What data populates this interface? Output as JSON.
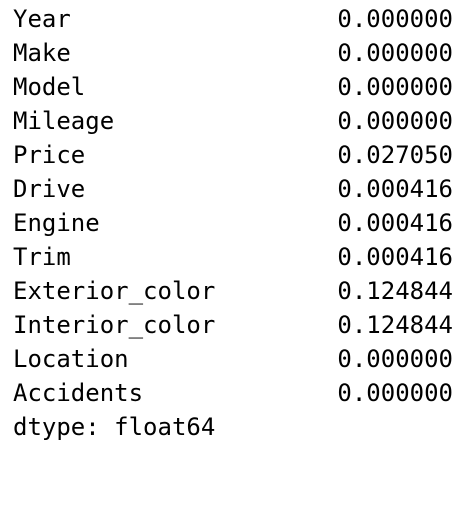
{
  "series": {
    "rows": [
      {
        "label": "Year",
        "value": "0.000000"
      },
      {
        "label": "Make",
        "value": "0.000000"
      },
      {
        "label": "Model",
        "value": "0.000000"
      },
      {
        "label": "Mileage",
        "value": "0.000000"
      },
      {
        "label": "Price",
        "value": "0.027050"
      },
      {
        "label": "Drive",
        "value": "0.000416"
      },
      {
        "label": "Engine",
        "value": "0.000416"
      },
      {
        "label": "Trim",
        "value": "0.000416"
      },
      {
        "label": "Exterior_color",
        "value": "0.124844"
      },
      {
        "label": "Interior_color",
        "value": "0.124844"
      },
      {
        "label": "Location",
        "value": "0.000000"
      },
      {
        "label": "Accidents",
        "value": "0.000000"
      }
    ],
    "dtype": "dtype: float64"
  },
  "colors": {
    "background": "#ffffff",
    "text": "#000000"
  }
}
